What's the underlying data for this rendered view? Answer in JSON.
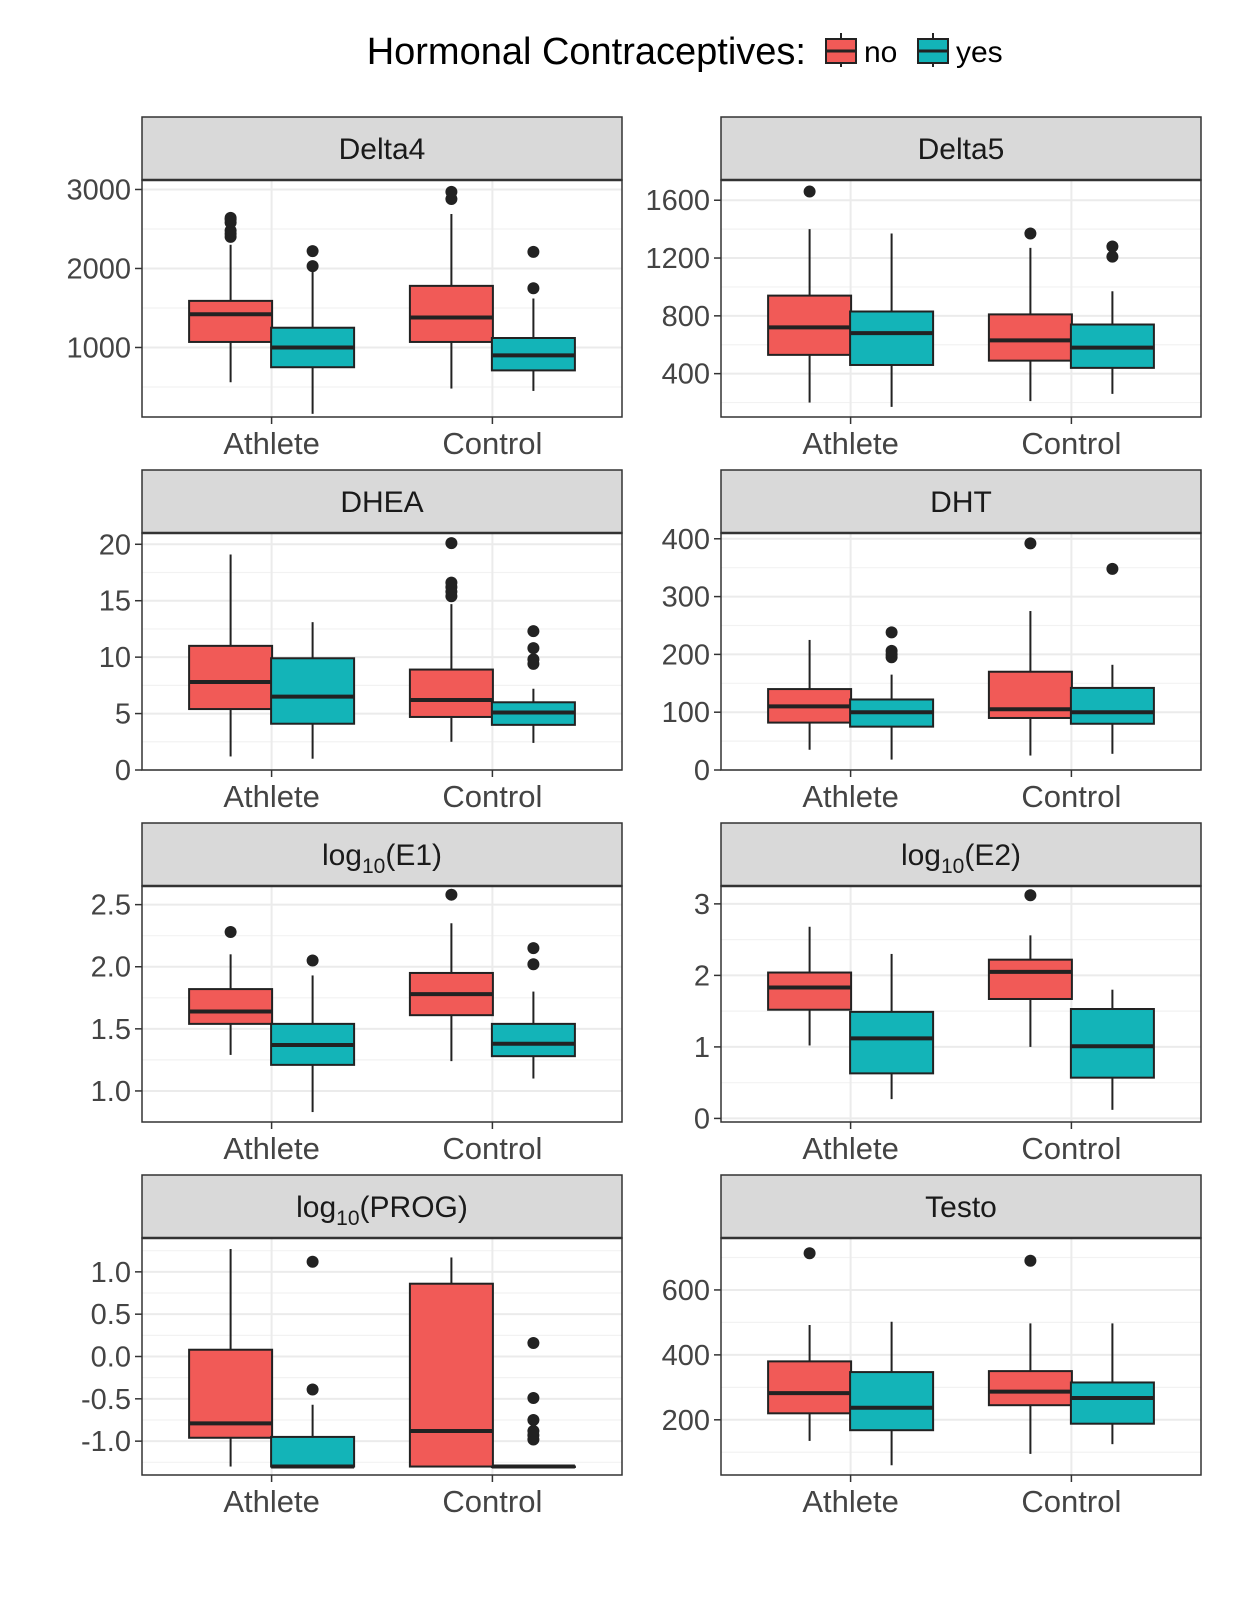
{
  "legend": {
    "title": "Hormonal Contraceptives:",
    "entries": [
      {
        "label": "no",
        "color": "#F15A57"
      },
      {
        "label": "yes",
        "color": "#13B4B8"
      }
    ]
  },
  "chart_data": [
    {
      "type": "box",
      "title": "Delta4",
      "categories": [
        "Athlete",
        "Control"
      ],
      "ylim": [
        120,
        3120
      ],
      "yticks": [
        1000,
        2000,
        3000
      ],
      "ytick_labels": [
        "1000",
        "2000",
        "3000"
      ],
      "series": [
        {
          "name": "no",
          "boxes": [
            {
              "category": "Athlete",
              "whisker_low": 560,
              "q1": 1070,
              "median": 1420,
              "q3": 1590,
              "whisker_high": 2300,
              "outliers": [
                2400,
                2440,
                2480,
                2580,
                2620,
                2640
              ]
            },
            {
              "category": "Control",
              "whisker_low": 480,
              "q1": 1070,
              "median": 1380,
              "q3": 1780,
              "whisker_high": 2690,
              "outliers": [
                2880,
                2970
              ]
            }
          ]
        },
        {
          "name": "yes",
          "boxes": [
            {
              "category": "Athlete",
              "whisker_low": 160,
              "q1": 750,
              "median": 1000,
              "q3": 1250,
              "whisker_high": 1980,
              "outliers": [
                2030,
                2220
              ]
            },
            {
              "category": "Control",
              "whisker_low": 450,
              "q1": 710,
              "median": 900,
              "q3": 1120,
              "whisker_high": 1620,
              "outliers": [
                1750,
                2210
              ]
            }
          ]
        }
      ]
    },
    {
      "type": "box",
      "title": "Delta5",
      "categories": [
        "Athlete",
        "Control"
      ],
      "ylim": [
        100,
        1740
      ],
      "yticks": [
        400,
        800,
        1200,
        1600
      ],
      "ytick_labels": [
        "400",
        "800",
        "1200",
        "1600"
      ],
      "series": [
        {
          "name": "no",
          "boxes": [
            {
              "category": "Athlete",
              "whisker_low": 200,
              "q1": 530,
              "median": 720,
              "q3": 940,
              "whisker_high": 1400,
              "outliers": [
                1660
              ]
            },
            {
              "category": "Control",
              "whisker_low": 210,
              "q1": 490,
              "median": 630,
              "q3": 810,
              "whisker_high": 1270,
              "outliers": [
                1370
              ]
            }
          ]
        },
        {
          "name": "yes",
          "boxes": [
            {
              "category": "Athlete",
              "whisker_low": 170,
              "q1": 460,
              "median": 680,
              "q3": 830,
              "whisker_high": 1370,
              "outliers": []
            },
            {
              "category": "Control",
              "whisker_low": 260,
              "q1": 440,
              "median": 580,
              "q3": 740,
              "whisker_high": 970,
              "outliers": [
                1210,
                1280
              ]
            }
          ]
        }
      ]
    },
    {
      "type": "box",
      "title": "DHEA",
      "categories": [
        "Athlete",
        "Control"
      ],
      "ylim": [
        0,
        21
      ],
      "yticks": [
        0,
        5,
        10,
        15,
        20
      ],
      "ytick_labels": [
        "0",
        "5",
        "10",
        "15",
        "20"
      ],
      "series": [
        {
          "name": "no",
          "boxes": [
            {
              "category": "Athlete",
              "whisker_low": 1.2,
              "q1": 5.4,
              "median": 7.8,
              "q3": 11.0,
              "whisker_high": 19.1,
              "outliers": []
            },
            {
              "category": "Control",
              "whisker_low": 2.5,
              "q1": 4.7,
              "median": 6.2,
              "q3": 8.9,
              "whisker_high": 14.7,
              "outliers": [
                15.4,
                15.8,
                16.2,
                16.6,
                20.1
              ]
            }
          ]
        },
        {
          "name": "yes",
          "boxes": [
            {
              "category": "Athlete",
              "whisker_low": 1.0,
              "q1": 4.1,
              "median": 6.5,
              "q3": 9.9,
              "whisker_high": 13.1,
              "outliers": []
            },
            {
              "category": "Control",
              "whisker_low": 2.4,
              "q1": 4.0,
              "median": 5.1,
              "q3": 6.0,
              "whisker_high": 7.2,
              "outliers": [
                9.4,
                9.8,
                10.8,
                12.3
              ]
            }
          ]
        }
      ]
    },
    {
      "type": "box",
      "title": "DHT",
      "categories": [
        "Athlete",
        "Control"
      ],
      "ylim": [
        0,
        410
      ],
      "yticks": [
        0,
        100,
        200,
        300,
        400
      ],
      "ytick_labels": [
        "0",
        "100",
        "200",
        "300",
        "400"
      ],
      "series": [
        {
          "name": "no",
          "boxes": [
            {
              "category": "Athlete",
              "whisker_low": 35,
              "q1": 82,
              "median": 110,
              "q3": 140,
              "whisker_high": 225,
              "outliers": []
            },
            {
              "category": "Control",
              "whisker_low": 25,
              "q1": 90,
              "median": 105,
              "q3": 170,
              "whisker_high": 275,
              "outliers": [
                392
              ]
            }
          ]
        },
        {
          "name": "yes",
          "boxes": [
            {
              "category": "Athlete",
              "whisker_low": 18,
              "q1": 75,
              "median": 100,
              "q3": 122,
              "whisker_high": 165,
              "outliers": [
                195,
                200,
                206,
                238
              ]
            },
            {
              "category": "Control",
              "whisker_low": 28,
              "q1": 80,
              "median": 100,
              "q3": 142,
              "whisker_high": 182,
              "outliers": [
                348
              ]
            }
          ]
        }
      ]
    },
    {
      "type": "box",
      "title": "log10(E1)",
      "title_parts": {
        "pre": "log",
        "sub": "10",
        "post": "(E1)"
      },
      "categories": [
        "Athlete",
        "Control"
      ],
      "ylim": [
        0.75,
        2.65
      ],
      "yticks": [
        1.0,
        1.5,
        2.0,
        2.5
      ],
      "ytick_labels": [
        "1.0",
        "1.5",
        "2.0",
        "2.5"
      ],
      "series": [
        {
          "name": "no",
          "boxes": [
            {
              "category": "Athlete",
              "whisker_low": 1.29,
              "q1": 1.54,
              "median": 1.64,
              "q3": 1.82,
              "whisker_high": 2.1,
              "outliers": [
                2.28
              ]
            },
            {
              "category": "Control",
              "whisker_low": 1.24,
              "q1": 1.61,
              "median": 1.78,
              "q3": 1.95,
              "whisker_high": 2.35,
              "outliers": [
                2.58
              ]
            }
          ]
        },
        {
          "name": "yes",
          "boxes": [
            {
              "category": "Athlete",
              "whisker_low": 0.83,
              "q1": 1.21,
              "median": 1.37,
              "q3": 1.54,
              "whisker_high": 1.93,
              "outliers": [
                2.05
              ]
            },
            {
              "category": "Control",
              "whisker_low": 1.1,
              "q1": 1.28,
              "median": 1.38,
              "q3": 1.54,
              "whisker_high": 1.8,
              "outliers": [
                2.02,
                2.15
              ]
            }
          ]
        }
      ]
    },
    {
      "type": "box",
      "title": "log10(E2)",
      "title_parts": {
        "pre": "log",
        "sub": "10",
        "post": "(E2)"
      },
      "categories": [
        "Athlete",
        "Control"
      ],
      "ylim": [
        -0.05,
        3.25
      ],
      "yticks": [
        0,
        1,
        2,
        3
      ],
      "ytick_labels": [
        "0",
        "1",
        "2",
        "3"
      ],
      "series": [
        {
          "name": "no",
          "boxes": [
            {
              "category": "Athlete",
              "whisker_low": 1.02,
              "q1": 1.52,
              "median": 1.83,
              "q3": 2.04,
              "whisker_high": 2.68,
              "outliers": []
            },
            {
              "category": "Control",
              "whisker_low": 1.0,
              "q1": 1.67,
              "median": 2.05,
              "q3": 2.22,
              "whisker_high": 2.56,
              "outliers": [
                3.12
              ]
            }
          ]
        },
        {
          "name": "yes",
          "boxes": [
            {
              "category": "Athlete",
              "whisker_low": 0.27,
              "q1": 0.63,
              "median": 1.12,
              "q3": 1.49,
              "whisker_high": 2.3,
              "outliers": []
            },
            {
              "category": "Control",
              "whisker_low": 0.12,
              "q1": 0.57,
              "median": 1.01,
              "q3": 1.53,
              "whisker_high": 1.8,
              "outliers": []
            }
          ]
        }
      ]
    },
    {
      "type": "box",
      "title": "log10(PROG)",
      "title_parts": {
        "pre": "log",
        "sub": "10",
        "post": "(PROG)"
      },
      "categories": [
        "Athlete",
        "Control"
      ],
      "ylim": [
        -1.4,
        1.4
      ],
      "yticks": [
        -1.0,
        -0.5,
        0.0,
        0.5,
        1.0
      ],
      "ytick_labels": [
        "-1.0",
        "-0.5",
        "0.0",
        "0.5",
        "1.0"
      ],
      "series": [
        {
          "name": "no",
          "boxes": [
            {
              "category": "Athlete",
              "whisker_low": -1.3,
              "q1": -0.96,
              "median": -0.79,
              "q3": 0.08,
              "whisker_high": 1.27,
              "outliers": []
            },
            {
              "category": "Control",
              "whisker_low": -1.3,
              "q1": -1.3,
              "median": -0.88,
              "q3": 0.86,
              "whisker_high": 1.17,
              "outliers": []
            }
          ]
        },
        {
          "name": "yes",
          "boxes": [
            {
              "category": "Athlete",
              "whisker_low": -1.3,
              "q1": -1.3,
              "median": -1.3,
              "q3": -0.95,
              "whisker_high": -0.57,
              "outliers": [
                -0.39,
                1.12
              ]
            },
            {
              "category": "Control",
              "whisker_low": -1.3,
              "q1": -1.3,
              "median": -1.3,
              "q3": -1.3,
              "whisker_high": -1.3,
              "outliers": [
                -0.98,
                -0.93,
                -0.88,
                -0.75,
                -0.49,
                0.16
              ]
            }
          ]
        }
      ]
    },
    {
      "type": "box",
      "title": "Testo",
      "categories": [
        "Athlete",
        "Control"
      ],
      "ylim": [
        30,
        760
      ],
      "yticks": [
        200,
        400,
        600
      ],
      "ytick_labels": [
        "200",
        "400",
        "600"
      ],
      "series": [
        {
          "name": "no",
          "boxes": [
            {
              "category": "Athlete",
              "whisker_low": 135,
              "q1": 220,
              "median": 282,
              "q3": 380,
              "whisker_high": 492,
              "outliers": [
                713
              ]
            },
            {
              "category": "Control",
              "whisker_low": 95,
              "q1": 245,
              "median": 287,
              "q3": 350,
              "whisker_high": 497,
              "outliers": [
                690
              ]
            }
          ]
        },
        {
          "name": "yes",
          "boxes": [
            {
              "category": "Athlete",
              "whisker_low": 60,
              "q1": 168,
              "median": 237,
              "q3": 347,
              "whisker_high": 502,
              "outliers": []
            },
            {
              "category": "Control",
              "whisker_low": 125,
              "q1": 188,
              "median": 267,
              "q3": 315,
              "whisker_high": 497,
              "outliers": []
            }
          ]
        }
      ]
    }
  ]
}
